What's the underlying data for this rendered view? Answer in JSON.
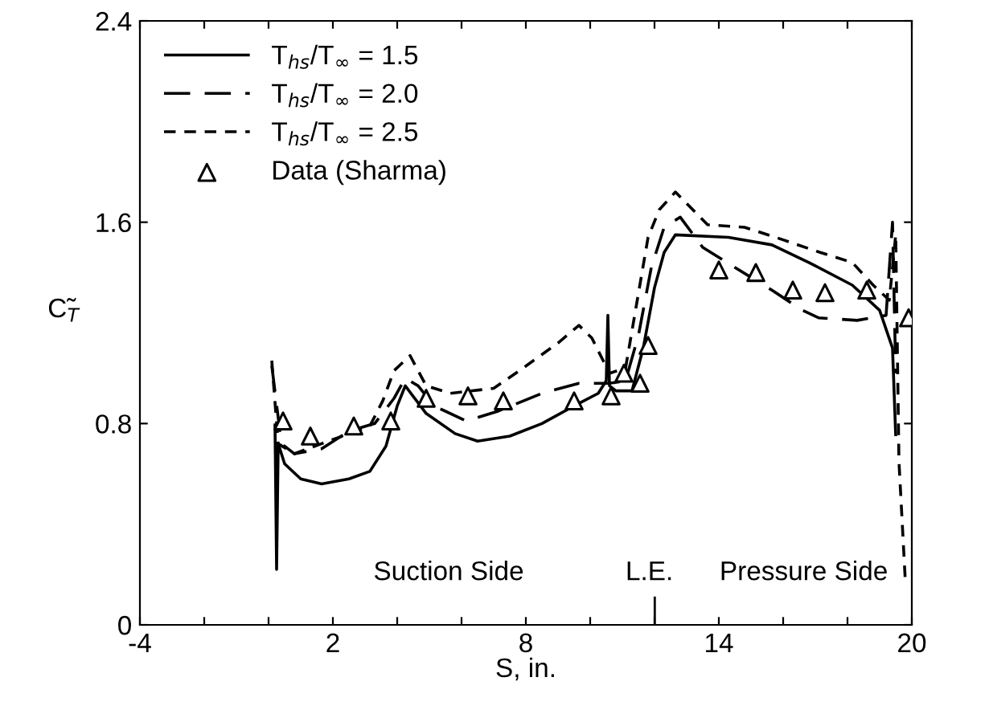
{
  "chart_data": {
    "type": "line",
    "xlabel": "S, in.",
    "ylabel": "C̃$_{T}$",
    "xlim": [
      -4,
      20
    ],
    "ylim": [
      0,
      2.4
    ],
    "xticks": [
      -4,
      {
        "value": -2,
        "label": null
      },
      {
        "value": 0,
        "label": null
      },
      2,
      {
        "value": 4,
        "label": null
      },
      {
        "value": 6,
        "label": null
      },
      8,
      {
        "value": 10,
        "label": null
      },
      {
        "value": 12,
        "label": null
      },
      14,
      {
        "value": 16,
        "label": null
      },
      {
        "value": 18,
        "label": null
      },
      20
    ],
    "yticks": [
      0,
      0.8,
      1.6,
      2.4
    ],
    "legend": "top left",
    "grid": false,
    "annotations": [
      "Suction Side",
      "L.E.",
      "Pressure Side"
    ],
    "series": [
      {
        "name": "T$_{hs}$/T$_{∞}$ = 1.5",
        "color": "#000000",
        "line_style": "solid",
        "marker": "none",
        "x": [
          0.2,
          0.25,
          0.3,
          0.5,
          1.0,
          1.65,
          2.5,
          3.15,
          3.65,
          4.0,
          4.25,
          4.9,
          5.8,
          6.5,
          7.5,
          8.5,
          9.5,
          10.25,
          10.5,
          10.55,
          10.6,
          10.8,
          11.3,
          11.65,
          12.0,
          12.3,
          12.65,
          14.3,
          15.65,
          16.8,
          18.15,
          19.0,
          19.4,
          19.5
        ],
        "values": [
          0.8,
          0.22,
          0.72,
          0.64,
          0.58,
          0.56,
          0.58,
          0.61,
          0.71,
          0.87,
          0.95,
          0.84,
          0.76,
          0.73,
          0.75,
          0.8,
          0.87,
          0.92,
          0.97,
          1.23,
          0.95,
          0.93,
          0.93,
          1.1,
          1.34,
          1.48,
          1.55,
          1.54,
          1.51,
          1.44,
          1.35,
          1.25,
          1.1,
          0.75
        ]
      },
      {
        "name": "T$_{hs}$/T$_{∞}$ = 2.0",
        "color": "#000000",
        "line_style": "dashed",
        "marker": "none",
        "x": [
          0.1,
          0.4,
          0.8,
          1.65,
          2.5,
          3.3,
          3.9,
          4.25,
          4.65,
          5.15,
          6.15,
          7.15,
          8.5,
          9.65,
          10.5,
          10.6,
          11.1,
          11.5,
          11.9,
          12.3,
          12.8,
          13.5,
          14.5,
          15.65,
          16.6,
          17.1,
          18.3,
          19.2,
          19.4,
          19.5
        ],
        "values": [
          1.03,
          0.72,
          0.68,
          0.7,
          0.77,
          0.8,
          0.9,
          0.98,
          0.95,
          0.87,
          0.81,
          0.85,
          0.92,
          0.96,
          0.96,
          0.96,
          0.97,
          1.15,
          1.42,
          1.58,
          1.62,
          1.5,
          1.42,
          1.33,
          1.25,
          1.22,
          1.21,
          1.23,
          1.6,
          1.0
        ]
      },
      {
        "name": "T$_{hs}$/T$_{∞}$ = 2.5",
        "color": "#000000",
        "line_style": "dotted",
        "marker": "none",
        "x": [
          0.1,
          0.3,
          0.8,
          1.65,
          3.15,
          3.55,
          3.9,
          4.4,
          4.9,
          5.65,
          7.0,
          7.8,
          9.0,
          9.65,
          10.05,
          10.6,
          11.1,
          11.8,
          12.15,
          12.65,
          13.65,
          14.8,
          16.0,
          17.15,
          18.15,
          18.8,
          19.3,
          19.5,
          19.6,
          19.8
        ],
        "values": [
          1.05,
          0.72,
          0.68,
          0.72,
          0.79,
          0.89,
          1.01,
          1.07,
          0.95,
          0.92,
          0.94,
          1.01,
          1.12,
          1.19,
          1.14,
          1.0,
          1.02,
          1.54,
          1.65,
          1.72,
          1.59,
          1.58,
          1.53,
          1.48,
          1.44,
          1.35,
          1.29,
          1.55,
          0.65,
          0.17
        ]
      },
      {
        "name": "Data (Sharma)",
        "type": "scatter",
        "color": "#000000",
        "marker": "triangle",
        "x": [
          0.45,
          1.3,
          2.65,
          3.8,
          4.9,
          6.2,
          7.3,
          9.5,
          10.65,
          11.05,
          11.55,
          11.8,
          14.0,
          15.15,
          16.3,
          17.3,
          18.6,
          19.9
        ],
        "values": [
          0.81,
          0.75,
          0.79,
          0.81,
          0.9,
          0.91,
          0.89,
          0.89,
          0.91,
          1.0,
          0.96,
          1.11,
          1.41,
          1.4,
          1.33,
          1.32,
          1.33,
          1.22
        ]
      }
    ]
  }
}
